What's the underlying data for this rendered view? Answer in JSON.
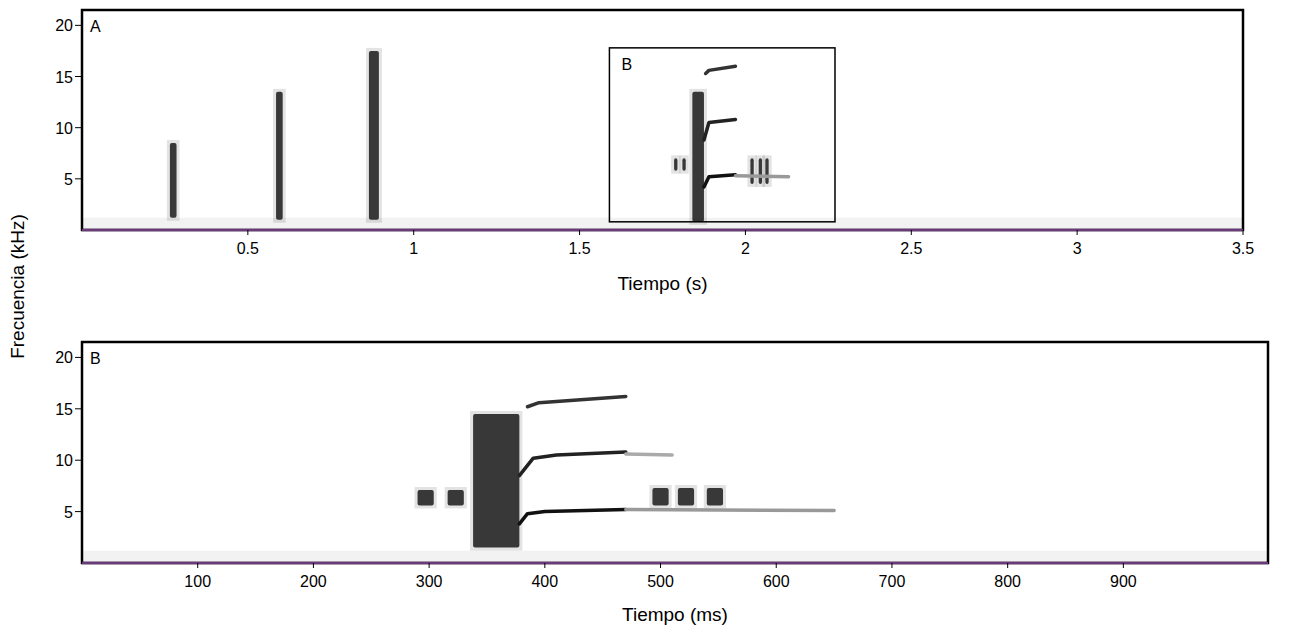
{
  "chart_data": [
    {
      "type": "spectrogram",
      "panel": "A",
      "xlabel": "Tiempo (s)",
      "ylabel": "Frecuencia (kHz)",
      "xlim": [
        0,
        3.5
      ],
      "ylim": [
        0,
        21.5
      ],
      "xticks": [
        0.5,
        1,
        1.5,
        2,
        2.5,
        3,
        3.5
      ],
      "yticks": [
        5,
        10,
        15,
        20
      ],
      "grid": false,
      "color": "#1a1a1a",
      "pulses": [
        {
          "x": [
            0.265,
            0.285
          ],
          "y": [
            1.2,
            8.5
          ]
        },
        {
          "x": [
            0.585,
            0.605
          ],
          "y": [
            1.0,
            13.5
          ]
        },
        {
          "x": [
            0.865,
            0.895
          ],
          "y": [
            1.0,
            17.5
          ]
        },
        {
          "x": [
            1.785,
            1.795
          ],
          "y": [
            5.8,
            7.0
          ]
        },
        {
          "x": [
            1.81,
            1.82
          ],
          "y": [
            5.8,
            7.0
          ]
        },
        {
          "x": [
            1.84,
            1.875
          ],
          "y": [
            0.8,
            13.5
          ]
        },
        {
          "x": [
            2.015,
            2.025
          ],
          "y": [
            4.5,
            7.0
          ]
        },
        {
          "x": [
            2.04,
            2.05
          ],
          "y": [
            4.5,
            7.0
          ]
        },
        {
          "x": [
            2.06,
            2.07
          ],
          "y": [
            4.5,
            7.0
          ]
        }
      ],
      "tones": [
        {
          "x": [
            1.875,
            1.89,
            1.97
          ],
          "y": [
            4.2,
            5.2,
            5.4
          ],
          "color": "#111111"
        },
        {
          "x": [
            1.875,
            1.89,
            1.97
          ],
          "y": [
            8.8,
            10.5,
            10.8
          ],
          "color": "#222222"
        },
        {
          "x": [
            1.88,
            1.89,
            1.97
          ],
          "y": [
            15.3,
            15.6,
            16.0
          ],
          "color": "#333333"
        },
        {
          "x": [
            1.97,
            2.13
          ],
          "y": [
            5.3,
            5.2
          ],
          "color": "#999999"
        }
      ],
      "inset": {
        "label": "B",
        "x": [
          1.59,
          2.27
        ],
        "y": [
          0.8,
          17.8
        ]
      }
    },
    {
      "type": "spectrogram",
      "panel": "B",
      "xlabel": "Tiempo (ms)",
      "xlim": [
        0,
        1025
      ],
      "ylim": [
        0,
        21.5
      ],
      "xticks": [
        100,
        200,
        300,
        400,
        500,
        600,
        700,
        800,
        900
      ],
      "yticks": [
        5,
        10,
        15,
        20
      ],
      "grid": false,
      "color": "#1a1a1a",
      "pulses": [
        {
          "x": [
            290,
            304
          ],
          "y": [
            5.6,
            7.1
          ]
        },
        {
          "x": [
            316,
            330
          ],
          "y": [
            5.6,
            7.1
          ]
        },
        {
          "x": [
            338,
            378
          ],
          "y": [
            1.5,
            14.5
          ]
        },
        {
          "x": [
            493,
            507
          ],
          "y": [
            5.6,
            7.3
          ]
        },
        {
          "x": [
            515,
            529
          ],
          "y": [
            5.6,
            7.3
          ]
        },
        {
          "x": [
            540,
            554
          ],
          "y": [
            5.6,
            7.3
          ]
        }
      ],
      "tones": [
        {
          "x": [
            378,
            385,
            400,
            470
          ],
          "y": [
            3.8,
            4.8,
            5.0,
            5.2
          ],
          "color": "#111111"
        },
        {
          "x": [
            378,
            390,
            410,
            470
          ],
          "y": [
            8.5,
            10.2,
            10.5,
            10.8
          ],
          "color": "#222222"
        },
        {
          "x": [
            385,
            395,
            470
          ],
          "y": [
            15.2,
            15.6,
            16.2
          ],
          "color": "#333333"
        },
        {
          "x": [
            470,
            650
          ],
          "y": [
            5.2,
            5.1
          ],
          "color": "#999999"
        },
        {
          "x": [
            470,
            510
          ],
          "y": [
            10.6,
            10.5
          ],
          "color": "#aaaaaa"
        }
      ]
    }
  ]
}
